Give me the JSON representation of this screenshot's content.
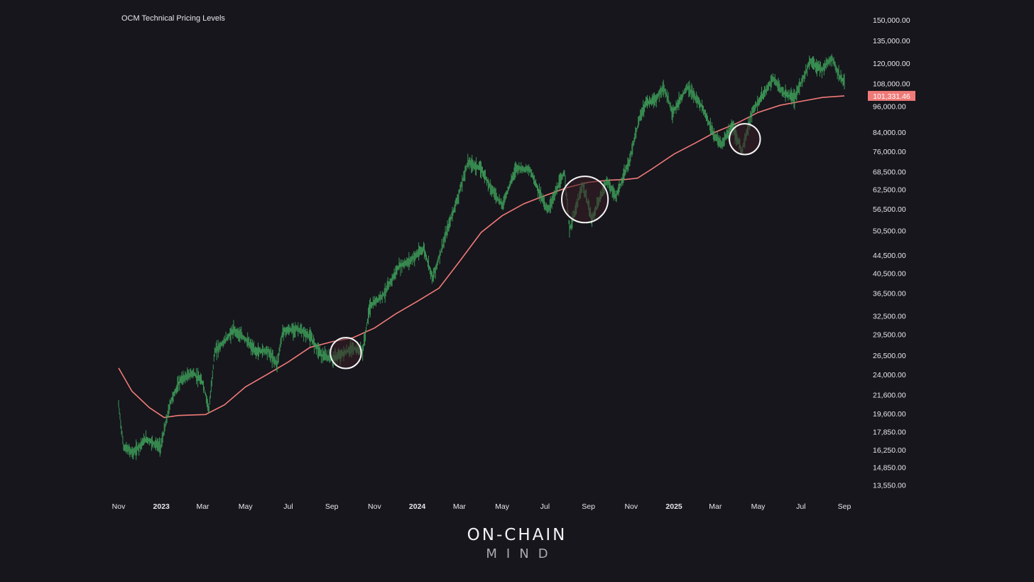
{
  "chart_data": {
    "type": "candlestick",
    "title": "OCM Technical Pricing Levels",
    "y_scale": "log",
    "ylim": [
      12700,
      158000
    ],
    "y_ticks": [
      "150,000.00",
      "135,000.00",
      "120,000.00",
      "108,000.00",
      "96,000.00",
      "84,000.00",
      "76,000.00",
      "68,500.00",
      "62,500.00",
      "56,500.00",
      "50,500.00",
      "44,500.00",
      "40,500.00",
      "36,500.00",
      "32,500.00",
      "29,500.00",
      "26,500.00",
      "24,000.00",
      "21,600.00",
      "19,600.00",
      "17,850.00",
      "16,250.00",
      "14,850.00",
      "13,550.00"
    ],
    "y_tick_values": [
      150000,
      135000,
      120000,
      108000,
      96000,
      84000,
      76000,
      68500,
      62500,
      56500,
      50500,
      44500,
      40500,
      36500,
      32500,
      29500,
      26500,
      24000,
      21600,
      19600,
      17850,
      16250,
      14850,
      13550
    ],
    "x_range": [
      "2022-11-01",
      "2025-09-01"
    ],
    "x_ticks": [
      {
        "label": "Nov",
        "date": "2022-11-01",
        "bold": false
      },
      {
        "label": "2023",
        "date": "2023-01-01",
        "bold": true
      },
      {
        "label": "Mar",
        "date": "2023-03-01",
        "bold": false
      },
      {
        "label": "May",
        "date": "2023-05-01",
        "bold": false
      },
      {
        "label": "Jul",
        "date": "2023-07-01",
        "bold": false
      },
      {
        "label": "Sep",
        "date": "2023-09-01",
        "bold": false
      },
      {
        "label": "Nov",
        "date": "2023-11-01",
        "bold": false
      },
      {
        "label": "2024",
        "date": "2024-01-01",
        "bold": true
      },
      {
        "label": "Mar",
        "date": "2024-03-01",
        "bold": false
      },
      {
        "label": "May",
        "date": "2024-05-01",
        "bold": false
      },
      {
        "label": "Jul",
        "date": "2024-07-01",
        "bold": false
      },
      {
        "label": "Sep",
        "date": "2024-09-01",
        "bold": false
      },
      {
        "label": "Nov",
        "date": "2024-11-01",
        "bold": false
      },
      {
        "label": "2025",
        "date": "2025-01-01",
        "bold": true
      },
      {
        "label": "Mar",
        "date": "2025-03-01",
        "bold": false
      },
      {
        "label": "May",
        "date": "2025-05-01",
        "bold": false
      },
      {
        "label": "Jul",
        "date": "2025-07-01",
        "bold": false
      },
      {
        "label": "Sep",
        "date": "2025-09-01",
        "bold": false
      }
    ],
    "price_series": {
      "color": "#3fa35c",
      "points": [
        [
          "2022-11-01",
          20500
        ],
        [
          "2022-11-08",
          16500
        ],
        [
          "2022-11-22",
          16000
        ],
        [
          "2022-12-10",
          17200
        ],
        [
          "2022-12-31",
          16500
        ],
        [
          "2023-01-14",
          20800
        ],
        [
          "2023-01-28",
          23300
        ],
        [
          "2023-02-15",
          24200
        ],
        [
          "2023-03-01",
          23000
        ],
        [
          "2023-03-10",
          20000
        ],
        [
          "2023-03-18",
          27000
        ],
        [
          "2023-04-01",
          28500
        ],
        [
          "2023-04-14",
          30200
        ],
        [
          "2023-05-01",
          28800
        ],
        [
          "2023-05-15",
          27000
        ],
        [
          "2023-06-01",
          27200
        ],
        [
          "2023-06-15",
          25300
        ],
        [
          "2023-06-23",
          30000
        ],
        [
          "2023-07-14",
          30400
        ],
        [
          "2023-08-01",
          29200
        ],
        [
          "2023-08-18",
          26500
        ],
        [
          "2023-09-01",
          26000
        ],
        [
          "2023-09-15",
          26600
        ],
        [
          "2023-10-01",
          27500
        ],
        [
          "2023-10-15",
          27000
        ],
        [
          "2023-10-25",
          34000
        ],
        [
          "2023-11-15",
          36500
        ],
        [
          "2023-12-06",
          42000
        ],
        [
          "2023-12-20",
          43000
        ],
        [
          "2024-01-10",
          46000
        ],
        [
          "2024-01-23",
          39500
        ],
        [
          "2024-02-15",
          52000
        ],
        [
          "2024-03-01",
          61500
        ],
        [
          "2024-03-13",
          72000
        ],
        [
          "2024-04-01",
          69500
        ],
        [
          "2024-04-15",
          63000
        ],
        [
          "2024-05-01",
          57500
        ],
        [
          "2024-05-21",
          70000
        ],
        [
          "2024-06-10",
          69000
        ],
        [
          "2024-06-25",
          60500
        ],
        [
          "2024-07-05",
          56000
        ],
        [
          "2024-07-29",
          68500
        ],
        [
          "2024-08-05",
          50500
        ],
        [
          "2024-08-24",
          64000
        ],
        [
          "2024-09-06",
          53500
        ],
        [
          "2024-09-27",
          65500
        ],
        [
          "2024-10-10",
          60000
        ],
        [
          "2024-10-29",
          72000
        ],
        [
          "2024-11-12",
          89000
        ],
        [
          "2024-11-22",
          98000
        ],
        [
          "2024-12-05",
          99000
        ],
        [
          "2024-12-17",
          106000
        ],
        [
          "2024-12-30",
          93000
        ],
        [
          "2025-01-20",
          106000
        ],
        [
          "2025-02-10",
          96000
        ],
        [
          "2025-02-28",
          82000
        ],
        [
          "2025-03-10",
          79000
        ],
        [
          "2025-03-25",
          87000
        ],
        [
          "2025-04-08",
          76000
        ],
        [
          "2025-04-22",
          93000
        ],
        [
          "2025-05-10",
          103000
        ],
        [
          "2025-05-22",
          111000
        ],
        [
          "2025-06-05",
          103000
        ],
        [
          "2025-06-22",
          100000
        ],
        [
          "2025-07-14",
          121000
        ],
        [
          "2025-07-31",
          116000
        ],
        [
          "2025-08-14",
          123500
        ],
        [
          "2025-08-25",
          112000
        ],
        [
          "2025-09-01",
          108500
        ]
      ]
    },
    "ma_series": {
      "color": "#f07a78",
      "points": [
        [
          "2022-11-01",
          24800
        ],
        [
          "2022-11-20",
          22000
        ],
        [
          "2022-12-15",
          20200
        ],
        [
          "2023-01-05",
          19200
        ],
        [
          "2023-01-25",
          19400
        ],
        [
          "2023-03-05",
          19500
        ],
        [
          "2023-04-01",
          20500
        ],
        [
          "2023-05-01",
          22500
        ],
        [
          "2023-06-01",
          24000
        ],
        [
          "2023-07-01",
          25600
        ],
        [
          "2023-08-01",
          27600
        ],
        [
          "2023-09-01",
          28400
        ],
        [
          "2023-10-01",
          29000
        ],
        [
          "2023-11-01",
          30500
        ],
        [
          "2023-12-01",
          32800
        ],
        [
          "2024-01-01",
          35000
        ],
        [
          "2024-02-01",
          37500
        ],
        [
          "2024-03-01",
          43000
        ],
        [
          "2024-04-01",
          50000
        ],
        [
          "2024-05-01",
          54500
        ],
        [
          "2024-06-01",
          58000
        ],
        [
          "2024-07-01",
          60500
        ],
        [
          "2024-08-01",
          63000
        ],
        [
          "2024-09-01",
          64800
        ],
        [
          "2024-10-01",
          65500
        ],
        [
          "2024-10-25",
          65800
        ],
        [
          "2024-11-10",
          66200
        ],
        [
          "2024-12-01",
          69500
        ],
        [
          "2025-01-01",
          75000
        ],
        [
          "2025-02-01",
          79500
        ],
        [
          "2025-03-01",
          84000
        ],
        [
          "2025-04-01",
          88000
        ],
        [
          "2025-05-01",
          93000
        ],
        [
          "2025-06-01",
          96500
        ],
        [
          "2025-07-01",
          98500
        ],
        [
          "2025-08-01",
          100500
        ],
        [
          "2025-09-01",
          101331.46
        ]
      ]
    },
    "last_value_label": "101,331.46",
    "last_value_color": "#f07a78",
    "annotations": [
      {
        "type": "circle",
        "center": [
          "2023-09-21",
          26800
        ],
        "radius_days": 22
      },
      {
        "type": "circle",
        "center": [
          "2024-08-27",
          59300
        ],
        "radius_days": 33
      },
      {
        "type": "circle",
        "center": [
          "2025-04-12",
          81000
        ],
        "radius_days": 22
      }
    ],
    "grid": false,
    "legend": "none"
  },
  "branding": {
    "line1": "ON-CHAIN",
    "line2": "MIND"
  },
  "colors": {
    "background": "#16161c",
    "text": "#e6e6ea",
    "circle_fill": "#3a1e24",
    "circle_stroke": "#f4f4f4"
  }
}
